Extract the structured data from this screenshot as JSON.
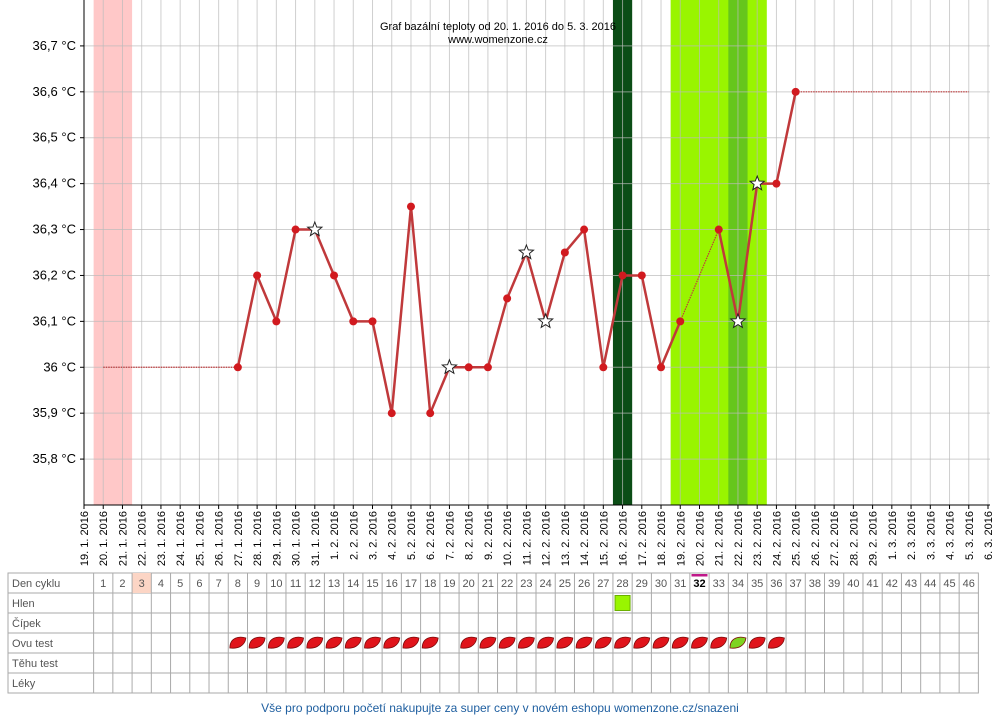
{
  "chart_data": {
    "type": "line",
    "title": "Graf bazální teploty od 20. 1. 2016 do 5. 3. 2016",
    "subtitle": "www.womenzone.cz",
    "categories": [
      "19. 1. 2016",
      "20. 1. 2016",
      "21. 1. 2016",
      "22. 1. 2016",
      "23. 1. 2016",
      "24. 1. 2016",
      "25. 1. 2016",
      "26. 1. 2016",
      "27. 1. 2016",
      "28. 1. 2016",
      "29. 1. 2016",
      "30. 1. 2016",
      "31. 1. 2016",
      "1. 2. 2016",
      "2. 2. 2016",
      "3. 2. 2016",
      "4. 2. 2016",
      "5. 2. 2016",
      "6. 2. 2016",
      "7. 2. 2016",
      "8. 2. 2016",
      "9. 2. 2016",
      "10. 2. 2016",
      "11. 2. 2016",
      "12. 2. 2016",
      "13. 2. 2016",
      "14. 2. 2016",
      "15. 2. 2016",
      "16. 2. 2016",
      "17. 2. 2016",
      "18. 2. 2016",
      "19. 2. 2016",
      "20. 2. 2016",
      "21. 2. 2016",
      "22. 2. 2016",
      "23. 2. 2016",
      "24. 2. 2016",
      "25. 2. 2016",
      "26. 2. 2016",
      "27. 2. 2016",
      "28. 2. 2016",
      "29. 2. 2016",
      "1. 3. 2016",
      "2. 3. 2016",
      "3. 3. 2016",
      "4. 3. 2016",
      "5. 3. 2016",
      "6. 3. 2016"
    ],
    "series": [
      {
        "color": "#c0393b",
        "values": [
          null,
          36.0,
          36.0,
          36.0,
          36.0,
          36.0,
          36.0,
          36.0,
          36.0,
          36.2,
          36.1,
          36.3,
          36.3,
          36.2,
          36.1,
          36.1,
          35.9,
          36.35,
          35.9,
          36.0,
          36.0,
          36.0,
          36.15,
          36.25,
          36.1,
          36.25,
          36.3,
          36.0,
          36.2,
          36.2,
          36.0,
          36.1,
          36.2,
          36.3,
          36.1,
          36.4,
          36.4,
          36.6,
          36.6,
          36.6,
          36.6,
          36.6,
          36.6,
          36.6,
          36.6,
          36.6,
          36.6,
          null
        ],
        "markers": [
          null,
          "none",
          "none",
          "none",
          "none",
          "none",
          "none",
          "none",
          "dot",
          "dot",
          "dot",
          "dot",
          "star",
          "dot",
          "dot",
          "dot",
          "dot",
          "dot",
          "dot",
          "star",
          "dot",
          "dot",
          "dot",
          "star",
          "star",
          "dot",
          "dot",
          "dot",
          "dot",
          "dot",
          "dot",
          "dot",
          "none",
          "dot",
          "star",
          "star",
          "dot",
          "dot",
          "none",
          "none",
          "none",
          "none",
          "none",
          "none",
          "none",
          "none",
          "none",
          null
        ]
      }
    ],
    "ylim": [
      35.7,
      36.8
    ],
    "yticks": [
      {
        "value": 35.8,
        "label": "35,8 °C"
      },
      {
        "value": 35.9,
        "label": "35,9 °C"
      },
      {
        "value": 36.0,
        "label": "36 °C"
      },
      {
        "value": 36.1,
        "label": "36,1 °C"
      },
      {
        "value": 36.2,
        "label": "36,2 °C"
      },
      {
        "value": 36.3,
        "label": "36,3 °C"
      },
      {
        "value": 36.4,
        "label": "36,4 °C"
      },
      {
        "value": 36.5,
        "label": "36,5 °C"
      },
      {
        "value": 36.6,
        "label": "36,6 °C"
      },
      {
        "value": 36.7,
        "label": "36,7 °C"
      }
    ],
    "grid": true,
    "bands": [
      {
        "from": "20. 1. 2016",
        "to": "21. 1. 2016",
        "color": "#ffc8c8"
      },
      {
        "from": "16. 2. 2016",
        "to": "16. 2. 2016",
        "color": "#0b4d16"
      },
      {
        "from": "19. 2. 2016",
        "to": "23. 2. 2016",
        "color": "#99f500"
      },
      {
        "from": "22. 2. 2016",
        "to": "22. 2. 2016",
        "color": "#66c61c"
      }
    ]
  },
  "table": {
    "row_labels": [
      "Den cyklu",
      "Hlen",
      "Čípek",
      "Ovu test",
      "Těhu test",
      "Léky"
    ],
    "cycle_days": [
      1,
      2,
      3,
      4,
      5,
      6,
      7,
      8,
      9,
      10,
      11,
      12,
      13,
      14,
      15,
      16,
      17,
      18,
      19,
      20,
      21,
      22,
      23,
      24,
      25,
      26,
      27,
      28,
      29,
      30,
      31,
      32,
      33,
      34,
      35,
      36,
      37,
      38,
      39,
      40,
      41,
      42,
      43,
      44,
      45,
      46
    ],
    "highlight_day": 3,
    "today": 32,
    "hlen_days": [
      28
    ],
    "ovu_negative_days": [
      8,
      9,
      10,
      11,
      12,
      13,
      14,
      15,
      16,
      17,
      18,
      20,
      21,
      22,
      23,
      24,
      25,
      26,
      27,
      28,
      29,
      30,
      31,
      32,
      33,
      35,
      36
    ],
    "ovu_positive_days": [
      34
    ]
  },
  "footer": "Vše pro podporu početí nakupujte za super ceny v novém eshopu womenzone.cz/snazeni"
}
